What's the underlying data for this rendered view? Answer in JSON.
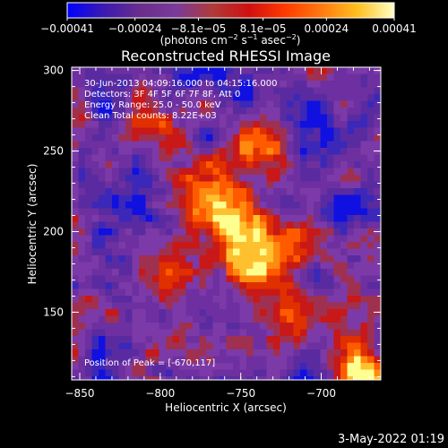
{
  "chart_data": {
    "type": "heatmap",
    "title": "Reconstructed RHESSI Image",
    "xlabel": "Heliocentric X (arcsec)",
    "ylabel": "Heliocentric Y (arcsec)",
    "xlim": [
      -855,
      -663
    ],
    "ylim": [
      108,
      302
    ],
    "x_ticks": [
      -850,
      -800,
      -750,
      -700
    ],
    "y_ticks": [
      150,
      200,
      250,
      300
    ],
    "x_tick_labels": [
      "−850",
      "−800",
      "−750",
      "−700"
    ],
    "y_tick_labels": [
      "150",
      "200",
      "250",
      "300"
    ],
    "colorbar": {
      "min": -0.00041,
      "max": 0.00041,
      "tick_values": [
        -0.00041,
        -0.00024,
        -8.1e-05,
        8.1e-05,
        0.00024,
        0.00041
      ],
      "tick_labels": [
        "−0.00041",
        "−0.00024",
        "−8.1e−05",
        "8.1e−05",
        "0.00024",
        "0.00041"
      ],
      "unit_main": "(photons cm",
      "unit_sup1": "−2",
      "unit_mid1": " s",
      "unit_sup2": "−1",
      "unit_mid2": " asec",
      "unit_sup3": "−2",
      "unit_end": ")",
      "colorscale": [
        "#0000ff",
        "#3a1ab0",
        "#6a2d8c",
        "#7a3a9a",
        "#b03a3a",
        "#d01010",
        "#ff3a00",
        "#ff7a10",
        "#ffc020",
        "#ffffc8"
      ]
    },
    "annotations": [
      "30-Jun-2013 04:09:16.000 to 04:15:16.000",
      "Detectors: 3F 4F 5F 6F 7F 8F, Att 0",
      "Energy Range: 25.0 - 50.0 keV",
      "Clean     Total counts: 8.22E+03"
    ],
    "peak_label": "Position of Peak = [-670,117]",
    "peak_position": [
      -670,
      117
    ]
  },
  "footer": {
    "timestamp": "3-May-2022 01:19"
  }
}
